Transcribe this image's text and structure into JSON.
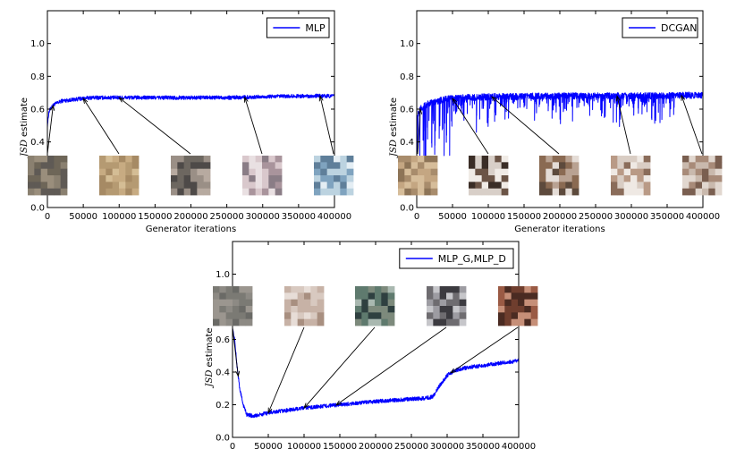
{
  "chart_data": [
    {
      "type": "line",
      "legend": "MLP",
      "legend_position": "top-right",
      "xlabel": "Generator iterations",
      "ylabel": "JSD estimate",
      "xlim": [
        0,
        400000
      ],
      "ylim": [
        0.0,
        1.2
      ],
      "xticks": [
        0,
        50000,
        100000,
        150000,
        200000,
        250000,
        300000,
        350000,
        400000
      ],
      "yticks": [
        0.0,
        0.2,
        0.4,
        0.6,
        0.8,
        1.0
      ],
      "color": "#0000ff",
      "series": [
        {
          "x": [
            0,
            2000,
            5000,
            10000,
            20000,
            40000,
            60000,
            80000,
            100000,
            150000,
            200000,
            250000,
            300000,
            350000,
            400000
          ],
          "y": [
            0.5,
            0.58,
            0.61,
            0.63,
            0.65,
            0.66,
            0.67,
            0.67,
            0.67,
            0.67,
            0.67,
            0.67,
            0.675,
            0.68,
            0.68
          ]
        }
      ],
      "noise": {
        "amp": 0.012,
        "spikes": 0
      },
      "samples": [
        {
          "name": "sample-mlp-1",
          "x": 8000,
          "palette": [
            "#8a8070",
            "#6e6658",
            "#9a8e7c",
            "#5f5a55"
          ]
        },
        {
          "name": "sample-mlp-2",
          "x": 50000,
          "palette": [
            "#b59a72",
            "#c7ab82",
            "#a68a64",
            "#d4bd95"
          ]
        },
        {
          "name": "sample-mlp-3",
          "x": 100000,
          "palette": [
            "#9a8f86",
            "#6d6760",
            "#b7aaa0",
            "#4e4a48"
          ]
        },
        {
          "name": "sample-mlp-4",
          "x": 275000,
          "palette": [
            "#d9c8cc",
            "#a9949c",
            "#e9e0e2",
            "#8a7d86"
          ]
        },
        {
          "name": "sample-mlp-5",
          "x": 380000,
          "palette": [
            "#bcd3e0",
            "#7fa3bf",
            "#e4eef4",
            "#5f7f9a"
          ]
        }
      ]
    },
    {
      "type": "line",
      "legend": "DCGAN",
      "legend_position": "top-right",
      "xlabel": "Generator iterations",
      "ylabel": "JSD estimate",
      "xlim": [
        0,
        400000
      ],
      "ylim": [
        0.0,
        1.2
      ],
      "xticks": [
        0,
        50000,
        100000,
        150000,
        200000,
        250000,
        300000,
        350000,
        400000
      ],
      "yticks": [
        0.0,
        0.2,
        0.4,
        0.6,
        0.8,
        1.0
      ],
      "color": "#0000ff",
      "series": [
        {
          "x": [
            0,
            5000,
            10000,
            20000,
            30000,
            40000,
            60000,
            100000,
            200000,
            300000,
            400000
          ],
          "y": [
            0.55,
            0.6,
            0.62,
            0.64,
            0.65,
            0.66,
            0.67,
            0.675,
            0.68,
            0.68,
            0.685
          ]
        }
      ],
      "noise": {
        "amp": 0.02,
        "spikes": 1
      },
      "samples": [
        {
          "name": "sample-dcgan-1",
          "x": 5000,
          "palette": [
            "#a88c6c",
            "#c4a682",
            "#8d7457",
            "#d6bd9a"
          ]
        },
        {
          "name": "sample-dcgan-2",
          "x": 50000,
          "palette": [
            "#3a2d26",
            "#d8cfc8",
            "#6b5446",
            "#f0ebe6"
          ]
        },
        {
          "name": "sample-dcgan-3",
          "x": 105000,
          "palette": [
            "#8a6a52",
            "#e4dcd6",
            "#b9a292",
            "#5d4a3c"
          ]
        },
        {
          "name": "sample-dcgan-4",
          "x": 280000,
          "palette": [
            "#b99a86",
            "#efe9e4",
            "#8a6c5a",
            "#d9cdc4"
          ]
        },
        {
          "name": "sample-dcgan-5",
          "x": 370000,
          "palette": [
            "#7a5f50",
            "#e1d7cf",
            "#a88b79",
            "#c9b9ad"
          ]
        }
      ]
    },
    {
      "type": "line",
      "legend": "MLP_G,MLP_D",
      "legend_position": "top-right",
      "xlabel": "",
      "ylabel": "JSD estimate",
      "xlim": [
        0,
        400000
      ],
      "ylim": [
        0.0,
        1.2
      ],
      "xticks": [
        0,
        50000,
        100000,
        150000,
        200000,
        250000,
        300000,
        350000,
        400000
      ],
      "yticks": [
        0.0,
        0.2,
        0.4,
        0.6,
        0.8,
        1.0
      ],
      "color": "#0000ff",
      "series": [
        {
          "x": [
            0,
            3000,
            6000,
            10000,
            15000,
            20000,
            30000,
            50000,
            100000,
            150000,
            200000,
            250000,
            270000,
            280000,
            290000,
            300000,
            310000,
            330000,
            350000,
            400000
          ],
          "y": [
            0.66,
            0.6,
            0.45,
            0.3,
            0.2,
            0.14,
            0.13,
            0.15,
            0.18,
            0.2,
            0.22,
            0.235,
            0.24,
            0.25,
            0.32,
            0.38,
            0.41,
            0.43,
            0.44,
            0.47
          ]
        }
      ],
      "noise": {
        "amp": 0.012,
        "spikes": 0
      },
      "samples": [
        {
          "name": "sample-mlpgd-1",
          "x": 8000,
          "palette": [
            "#7b7a74",
            "#8d8a84",
            "#6a6a66",
            "#9b968f"
          ]
        },
        {
          "name": "sample-mlpgd-2",
          "x": 50000,
          "palette": [
            "#c7b2a6",
            "#e7ddd7",
            "#a88f80",
            "#d8c9c0"
          ]
        },
        {
          "name": "sample-mlpgd-3",
          "x": 100000,
          "palette": [
            "#5f7a6e",
            "#2f4040",
            "#a9b8b0",
            "#7d8a7c"
          ]
        },
        {
          "name": "sample-mlpgd-4",
          "x": 145000,
          "palette": [
            "#6e6c70",
            "#c6c6ca",
            "#3c3b40",
            "#9d9ca2"
          ]
        },
        {
          "name": "sample-mlpgd-5",
          "x": 305000,
          "palette": [
            "#9a5a44",
            "#6f3e2e",
            "#c68f78",
            "#4a2b22"
          ]
        }
      ]
    }
  ]
}
